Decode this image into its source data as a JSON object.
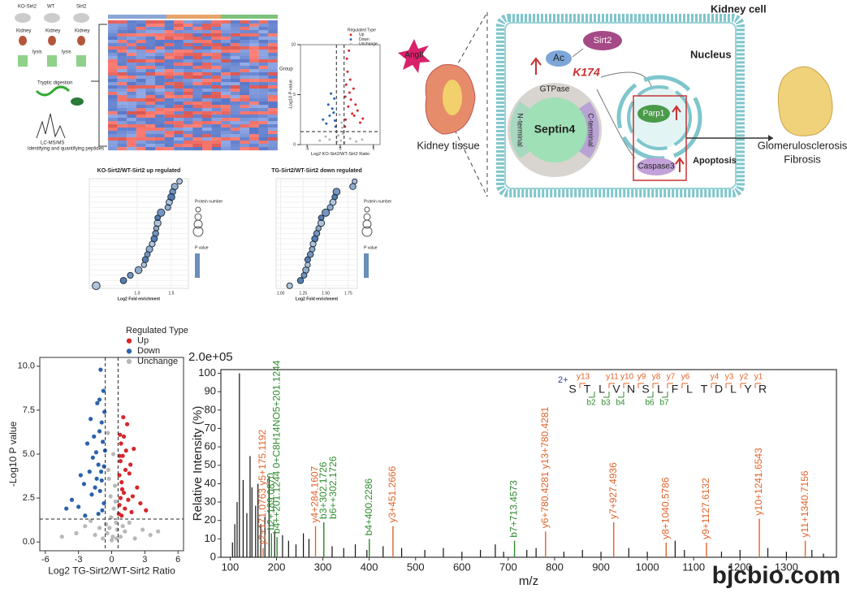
{
  "workflow": {
    "groups": [
      "KO-Sirt2",
      "WT",
      "Sirt2"
    ],
    "tissue": "Kidney",
    "lysis": "lysis",
    "digestion": "Tryptic digestion",
    "ms": "LC-MS/MS",
    "quant": "Identifying and quantifying peptides"
  },
  "heatmap": {
    "legend_title": "Group"
  },
  "diagram": {
    "cell": "Kidney cell",
    "stimulus": "AngII",
    "tissue": "Kidney tissue",
    "sirt2": "Sirt2",
    "ac": "Ac",
    "site": "K174",
    "gtpase": "GTPase",
    "septin": "Septin4",
    "n_term": "N-terminal",
    "c_term": "C-terminal",
    "nucleus": "Nucleus",
    "parp": "Parp1",
    "caspase": "Caspase3",
    "apoptosis": "Apoptosis",
    "outcome1": "Glomerulosclerosis",
    "outcome2": "Fibrosis"
  },
  "chart_data": [
    {
      "type": "scatter",
      "legend_title": "Regulated Type",
      "xlabel": "Log2 TG-Sirt2/WT-Sirt2 Ratio",
      "ylabel": "-Log10 P value",
      "xlim": [
        -6.5,
        6.5
      ],
      "ylim": [
        -0.5,
        10.5
      ],
      "xticks": [
        -6,
        -3,
        0,
        3,
        6
      ],
      "yticks": [
        {
          "value": 0,
          "label": "0.0"
        },
        2.5,
        {
          "value": 5,
          "label": "5.0"
        },
        7.5,
        {
          "value": 10,
          "label": "10.0"
        }
      ],
      "thresholds": {
        "x": [
          -0.58,
          0.58
        ],
        "y": 1.3
      },
      "series": [
        {
          "name": "Up",
          "color": "#d7262b",
          "x": [
            0.7,
            0.9,
            1.1,
            0.8,
            1.3,
            1.6,
            0.75,
            1.0,
            1.9,
            2.3,
            0.65,
            1.2,
            0.85,
            1.4,
            0.95,
            1.7,
            2.6,
            0.7,
            1.05,
            1.5,
            3.1,
            0.8,
            1.25,
            2.0,
            0.9,
            1.1,
            1.8,
            0.72
          ],
          "values": [
            2.1,
            3.4,
            2.8,
            4.6,
            5.2,
            3.9,
            6.1,
            4.9,
            2.6,
            3.1,
            1.6,
            1.9,
            5.6,
            6.7,
            3.0,
            4.4,
            2.2,
            3.8,
            7.1,
            2.4,
            1.8,
            2.5,
            4.1,
            5.3,
            1.5,
            6.0,
            1.7,
            4.9
          ]
        },
        {
          "name": "Down",
          "color": "#2a62ad",
          "x": [
            -0.7,
            -0.9,
            -1.2,
            -1.5,
            -0.8,
            -1.1,
            -2.0,
            -0.65,
            -1.4,
            -1.8,
            -2.5,
            -3.0,
            -0.75,
            -1.0,
            -1.3,
            -0.9,
            -2.2,
            -1.6,
            -0.7,
            -1.05,
            -3.6,
            -1.2,
            -0.85,
            -1.7,
            -2.8,
            -0.6,
            -1.1,
            -1.9,
            -0.95,
            -1.35,
            -4.1,
            -2.4
          ],
          "values": [
            2.2,
            3.5,
            4.4,
            3.1,
            5.7,
            6.3,
            4.0,
            7.4,
            5.1,
            2.7,
            3.3,
            2.0,
            8.6,
            9.8,
            7.9,
            6.8,
            5.6,
            6.0,
            4.3,
            2.9,
            2.4,
            1.6,
            1.8,
            4.8,
            3.8,
            5.2,
            8.1,
            7.0,
            4.0,
            3.6,
            1.9,
            1.5
          ]
        },
        {
          "name": "Unchange",
          "color": "#b8b8b8",
          "x": [
            0.1,
            -0.2,
            0.4,
            -0.4,
            0.2,
            -0.1,
            0.3,
            -0.3,
            0.0,
            1.2,
            -1.5,
            2.1,
            -2.4,
            0.5,
            -0.5,
            1.6,
            -1.1,
            0.8,
            -0.8,
            0.15,
            -0.25,
            0.35,
            -3.2,
            3.5,
            -0.05,
            1.0,
            -1.9,
            0.45,
            2.8,
            -4.5,
            4.2,
            -0.35
          ],
          "values": [
            0.3,
            0.8,
            1.1,
            0.5,
            1.9,
            2.6,
            3.2,
            4.1,
            0.1,
            0.6,
            0.4,
            0.2,
            0.9,
            0.7,
            1.0,
            1.1,
            0.8,
            0.3,
            0.2,
            5.0,
            3.6,
            2.3,
            0.5,
            0.4,
            1.4,
            0.9,
            1.2,
            0.2,
            0.7,
            0.3,
            0.6,
            6.2
          ]
        }
      ]
    },
    {
      "type": "spectrum",
      "scale_label": "2.0e+05",
      "xlabel": "m/z",
      "ylabel": "Relative Intensity (%)",
      "xlim": [
        80,
        1408
      ],
      "ylim": [
        0,
        102
      ],
      "xticks": [
        100,
        200,
        300,
        400,
        500,
        600,
        700,
        800,
        900,
        1000,
        1100,
        1200,
        1300
      ],
      "yticks": [
        0,
        10,
        20,
        30,
        40,
        50,
        60,
        70,
        80,
        90,
        100
      ],
      "peaks": {
        "color": "#111111",
        "x": [
          105,
          110,
          115,
          120,
          128,
          136,
          143,
          147,
          155,
          160,
          166,
          175,
          184,
          196,
          213,
          226,
          242,
          258,
          270,
          320,
          345,
          370,
          395,
          430,
          470,
          520,
          560,
          600,
          640,
          672,
          690,
          740,
          760,
          820,
          860,
          900,
          960,
          1000,
          1060,
          1080,
          1160,
          1200,
          1260,
          1300,
          1355,
          1380
        ],
        "values": [
          8,
          18,
          30,
          100,
          42,
          24,
          55,
          38,
          28,
          40,
          18,
          22,
          44,
          14,
          12,
          9,
          7,
          13,
          10,
          6,
          5,
          7,
          4,
          6,
          5,
          4,
          5,
          3,
          4,
          7,
          3,
          4,
          5,
          3,
          4,
          3,
          5,
          3,
          9,
          4,
          3,
          4,
          5,
          3,
          4,
          2
        ]
      },
      "ions": {
        "x": [
          171.08,
          189.09,
          201.12,
          284.16,
          302.17,
          302.17,
          400.23,
          451.27,
          713.46,
          780.43,
          927.49,
          1040.58,
          1127.61,
          1241.65,
          1340.72
        ],
        "values": [
          5,
          13,
          11,
          17,
          19,
          19,
          10,
          17,
          9,
          14,
          19,
          8,
          8,
          21,
          9
        ],
        "labels": [
          "y2+171.0763 y5+175.1192",
          "b2+189.0870",
          "b4++201.1244 0+C8H14NO5+201.1244",
          "y4+284.1607",
          "b3+302.1726",
          "b6++302.1726",
          "b4+400.2286",
          "y3+451.2666",
          "b7+713.4573",
          "y6+780.4281 y13+780.4281",
          "y7+927.4936",
          "y8+1040.5786",
          "y9+1127.6132",
          "y10+1241.6543",
          "y11+1340.7156"
        ],
        "colors": [
          "#e0632a",
          "#2e8b2e",
          "#2e8b2e",
          "#e0632a",
          "#2e8b2e",
          "#2e8b2e",
          "#2e8b2e",
          "#e0632a",
          "#2e8b2e",
          "#e0632a",
          "#e0632a",
          "#e0632a",
          "#e0632a",
          "#e0632a",
          "#e0632a"
        ]
      },
      "sequence": {
        "charge": "2+",
        "residues": [
          "S",
          "T",
          "L",
          "V",
          "N",
          "S",
          "L",
          "F",
          "L",
          "T",
          "D",
          "L",
          "Y",
          "R"
        ],
        "y_ions": [
          "y13",
          "y11",
          "y10",
          "y9",
          "y8",
          "y7",
          "y6",
          "y4",
          "y3",
          "y2",
          "y1"
        ],
        "b_ions": [
          "b2",
          "b3",
          "b4",
          "b6",
          "b7"
        ],
        "y_color": "#e0632a",
        "b_color": "#2e8b2e"
      }
    },
    {
      "type": "scatter",
      "legend_title": "Regulated Type",
      "xlabel": "Log2 KO-Sirt2/WT-Sirt2 Ratio",
      "ylabel": "-Log10 P value",
      "xlim": [
        -6,
        6
      ],
      "ylim": [
        0,
        10
      ],
      "xticks": [
        -5,
        0,
        5
      ],
      "yticks": [
        0,
        5,
        10
      ],
      "thresholds": {
        "x": [
          -0.58,
          0.58
        ],
        "y": 1.3
      },
      "series": [
        {
          "name": "Up",
          "color": "#d7262b",
          "x": [
            0.8,
            1.2,
            1.6,
            2.1,
            0.9,
            1.4,
            2.6,
            3.0,
            1.1,
            0.7,
            1.8,
            2.3,
            1.0,
            1.5,
            3.4,
            0.75,
            1.3,
            2.0
          ],
          "values": [
            2.5,
            3.8,
            4.5,
            2.9,
            6.0,
            5.2,
            3.4,
            2.2,
            7.3,
            1.8,
            3.1,
            4.0,
            8.6,
            6.5,
            2.6,
            4.8,
            9.4,
            5.6
          ]
        },
        {
          "name": "Down",
          "color": "#2a62ad",
          "x": [
            -0.8,
            -1.2,
            -1.6,
            -2.1,
            -0.9,
            -1.4,
            -2.6,
            -1.0,
            -0.7,
            -1.8
          ],
          "values": [
            2.4,
            3.6,
            2.9,
            2.1,
            4.6,
            5.1,
            2.5,
            3.2,
            1.8,
            4.0
          ]
        },
        {
          "name": "Unchange",
          "color": "#b8b8b8",
          "x": [
            0.1,
            -0.3,
            0.4,
            -0.5,
            0.2,
            1.5,
            -1.6,
            2.4,
            -2.2,
            0.6,
            -0.1,
            0.3,
            -3.1,
            3.3
          ],
          "values": [
            0.4,
            0.9,
            1.1,
            0.3,
            2.2,
            0.6,
            0.5,
            0.3,
            0.8,
            0.2,
            3.0,
            1.7,
            0.4,
            0.5
          ]
        }
      ]
    },
    {
      "type": "bubble",
      "title": "KO-Sirt2/WT-Sirt2 up regulated",
      "xlabel": "Log2 Fold enrichment",
      "legend_titles": [
        "Protein number",
        "P value"
      ],
      "xlim": [
        0.3,
        1.75
      ],
      "xticks": [
        {
          "value": 1,
          "label": "1.0"
        },
        1.5
      ],
      "color": "#2c5f9e",
      "values": [
        1.62,
        1.55,
        1.52,
        1.5,
        1.47,
        1.45,
        1.35,
        1.3,
        1.3,
        1.28,
        1.27,
        1.25,
        1.22,
        1.18,
        1.15,
        1.12,
        1.1,
        1.02,
        0.9,
        0.8,
        0.4
      ],
      "sizes": [
        6,
        10,
        8,
        12,
        9,
        7,
        14,
        6,
        11,
        5,
        8,
        9,
        7,
        10,
        6,
        8,
        5,
        12,
        7,
        9,
        16
      ]
    },
    {
      "type": "bubble",
      "title": "TG-Sirt2/WT-Sirt2 down regulated",
      "xlabel": "Log2 Fold enrichment",
      "legend_titles": [
        "Protein number",
        "P value"
      ],
      "xlim": [
        0.95,
        1.85
      ],
      "xticks": [
        {
          "value": 1,
          "label": "1.00"
        },
        1.25,
        {
          "value": 1.5,
          "label": "1.50"
        },
        1.75
      ],
      "color": "#2c5f9e",
      "values": [
        1.82,
        1.8,
        1.62,
        1.6,
        1.58,
        1.55,
        1.5,
        1.45,
        1.45,
        1.42,
        1.4,
        1.38,
        1.36,
        1.35,
        1.33,
        1.3,
        1.3,
        1.28,
        1.26,
        1.22,
        1.1
      ],
      "sizes": [
        4,
        8,
        12,
        6,
        9,
        7,
        14,
        6,
        10,
        5,
        8,
        9,
        7,
        6,
        8,
        7,
        5,
        9,
        6,
        8,
        7
      ]
    }
  ],
  "watermark": "bjcbio.com"
}
